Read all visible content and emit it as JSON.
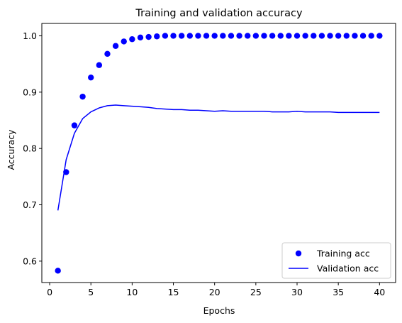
{
  "chart_data": {
    "type": "line",
    "title": "Training and validation accuracy",
    "xlabel": "Epochs",
    "ylabel": "Accuracy",
    "xlim": [
      -0.95,
      41.95
    ],
    "ylim": [
      0.562,
      1.022
    ],
    "x_ticks": [
      "0",
      "5",
      "10",
      "15",
      "20",
      "25",
      "30",
      "35",
      "40"
    ],
    "y_ticks": [
      "0.6",
      "0.7",
      "0.8",
      "0.9",
      "1.0"
    ],
    "grid": false,
    "legend_position": "lower-right",
    "series": [
      {
        "name": "Training acc",
        "style": "markers",
        "color": "#0000ff",
        "x": [
          1,
          2,
          3,
          4,
          5,
          6,
          7,
          8,
          9,
          10,
          11,
          12,
          13,
          14,
          15,
          16,
          17,
          18,
          19,
          20,
          21,
          22,
          23,
          24,
          25,
          26,
          27,
          28,
          29,
          30,
          31,
          32,
          33,
          34,
          35,
          36,
          37,
          38,
          39,
          40
        ],
        "values": [
          0.583,
          0.758,
          0.841,
          0.892,
          0.926,
          0.948,
          0.968,
          0.982,
          0.99,
          0.994,
          0.997,
          0.998,
          0.999,
          1.0,
          1.0,
          1.0,
          1.0,
          1.0,
          1.0,
          1.0,
          1.0,
          1.0,
          1.0,
          1.0,
          1.0,
          1.0,
          1.0,
          1.0,
          1.0,
          1.0,
          1.0,
          1.0,
          1.0,
          1.0,
          1.0,
          1.0,
          1.0,
          1.0,
          1.0,
          1.0
        ]
      },
      {
        "name": "Validation acc",
        "style": "line",
        "color": "#0000ff",
        "x": [
          1,
          2,
          3,
          4,
          5,
          6,
          7,
          8,
          9,
          10,
          11,
          12,
          13,
          14,
          15,
          16,
          17,
          18,
          19,
          20,
          21,
          22,
          23,
          24,
          25,
          26,
          27,
          28,
          29,
          30,
          31,
          32,
          33,
          34,
          35,
          36,
          37,
          38,
          39,
          40
        ],
        "values": [
          0.69,
          0.78,
          0.827,
          0.853,
          0.865,
          0.872,
          0.876,
          0.877,
          0.876,
          0.875,
          0.874,
          0.873,
          0.871,
          0.87,
          0.869,
          0.869,
          0.868,
          0.868,
          0.867,
          0.866,
          0.867,
          0.866,
          0.866,
          0.866,
          0.866,
          0.866,
          0.865,
          0.865,
          0.865,
          0.866,
          0.865,
          0.865,
          0.865,
          0.865,
          0.864,
          0.864,
          0.864,
          0.864,
          0.864,
          0.864
        ]
      }
    ]
  }
}
